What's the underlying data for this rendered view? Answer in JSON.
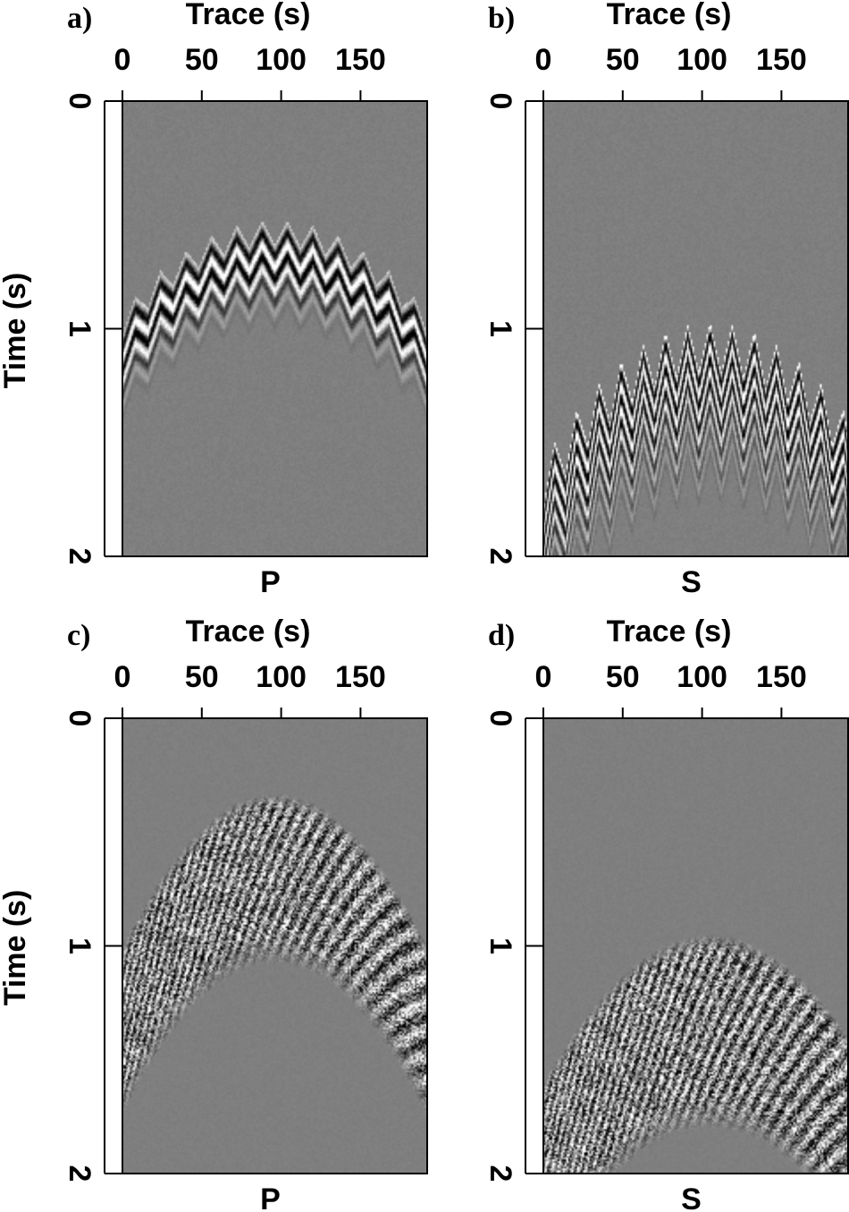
{
  "chart_data": [
    {
      "type": "heatmap",
      "panel_label": "a)",
      "xlabel": "Trace (s)",
      "ylabel": "Time (s)",
      "caption": "P",
      "xticks": [
        "0",
        "50",
        "100",
        "150"
      ],
      "yticks": [
        "0",
        "1",
        "2"
      ],
      "xlim": [
        0,
        192
      ],
      "ylim": [
        0,
        2
      ],
      "background_color": "#7f7f7f",
      "colormap": "gray",
      "event": {
        "apex_trace": 96,
        "apex_time": 0.6,
        "edge_time": 1.0,
        "thickness": 0.2,
        "pattern": "zigzag",
        "period": 16
      }
    },
    {
      "type": "heatmap",
      "panel_label": "b)",
      "xlabel": "Trace (s)",
      "ylabel": "",
      "caption": "S",
      "xticks": [
        "0",
        "50",
        "100",
        "150"
      ],
      "yticks": [
        "0",
        "1",
        "2"
      ],
      "xlim": [
        0,
        192
      ],
      "ylim": [
        0,
        2
      ],
      "background_color": "#7f7f7f",
      "colormap": "gray",
      "event": {
        "apex_trace": 105,
        "apex_time": 1.05,
        "edge_time": 1.65,
        "thickness": 0.4,
        "pattern": "zigzag",
        "period": 14
      }
    },
    {
      "type": "heatmap",
      "panel_label": "c)",
      "xlabel": "Trace (s)",
      "ylabel": "Time (s)",
      "caption": "P",
      "xticks": [
        "0",
        "50",
        "100",
        "150"
      ],
      "yticks": [
        "0",
        "1",
        "2"
      ],
      "xlim": [
        0,
        192
      ],
      "ylim": [
        0,
        2
      ],
      "background_color": "#7f7f7f",
      "colormap": "gray",
      "event": {
        "apex_trace": 96,
        "apex_time": 0.38,
        "edge_time": 1.05,
        "thickness": 0.55,
        "pattern": "noise",
        "period": 10
      }
    },
    {
      "type": "heatmap",
      "panel_label": "d)",
      "xlabel": "Trace (s)",
      "ylabel": "",
      "caption": "S",
      "xticks": [
        "0",
        "50",
        "100",
        "150"
      ],
      "yticks": [
        "0",
        "1",
        "2"
      ],
      "xlim": [
        0,
        192
      ],
      "ylim": [
        0,
        2
      ],
      "background_color": "#7f7f7f",
      "colormap": "gray",
      "event": {
        "apex_trace": 105,
        "apex_time": 1.0,
        "edge_time": 1.65,
        "thickness": 0.65,
        "pattern": "noise",
        "period": 10
      }
    }
  ]
}
